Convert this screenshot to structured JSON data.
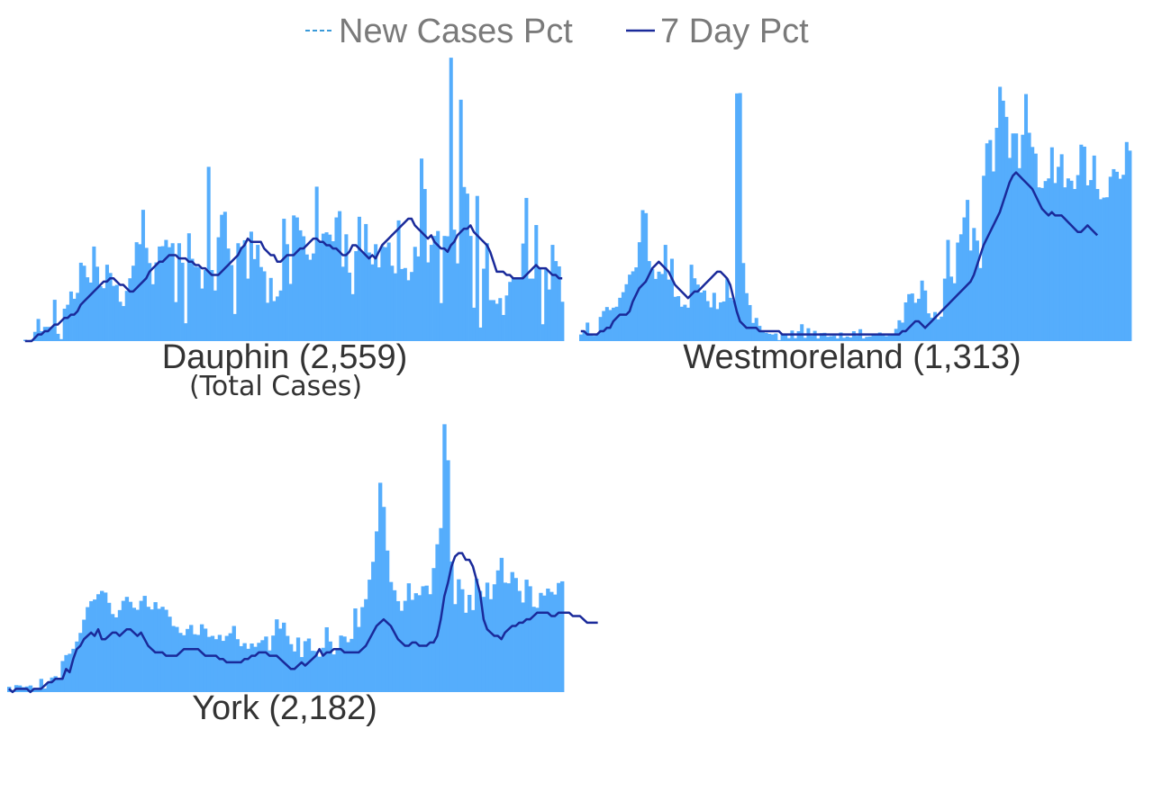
{
  "legend": {
    "new_cases_label": "New Cases Pct",
    "seven_day_label": "7 Day Pct"
  },
  "colors": {
    "bars": "#55adfc",
    "line": "#1a2a9a",
    "legend_dash": "#3a9ad9"
  },
  "chart_data": [
    {
      "type": "bar",
      "title": "Dauphin (2,559)",
      "subtitle": "(Total Cases)",
      "values": [
        0.4,
        0.2,
        0.4,
        2.8,
        6.7,
        3.0,
        4.3,
        4.3,
        4.3,
        12.5,
        2.2,
        0.6,
        9.8,
        11.0,
        15.0,
        12.8,
        14.6,
        23.7,
        22.8,
        19.3,
        17.7,
        28.6,
        22.5,
        16.6,
        16.0,
        23.1,
        20.6,
        16.7,
        17.0,
        11.9,
        10.6,
        15.2,
        19.0,
        22.8,
        29.9,
        29.3,
        39.7,
        28.2,
        23.6,
        17.2,
        23.8,
        28.6,
        28.7,
        30.6,
        28.4,
        29.6,
        11.8,
        29.6,
        23.7,
        5.4,
        32.6,
        24.9,
        22.5,
        22.4,
        15.9,
        21.5,
        52.7,
        21.5,
        15.3,
        31.4,
        38.2,
        39.1,
        28.0,
        23.0,
        8.2,
        29.6,
        28.5,
        30.5,
        18.9,
        33.1,
        24.8,
        29.1,
        22.4,
        21.1,
        11.6,
        19.1,
        12.1,
        13.5,
        15.3,
        37.0,
        29.3,
        17.3,
        38.0,
        37.4,
        33.5,
        31.7,
        26.2,
        24.6,
        26.5,
        46.7,
        29.8,
        32.5,
        32.9,
        32.2,
        30.2,
        37.4,
        39.3,
        22.5,
        32.3,
        20.7,
        14.2,
        27.2,
        37.6,
        26.9,
        35.4,
        26.8,
        23.2,
        29.3,
        22.3,
        28.7,
        28.4,
        29.8,
        22.8,
        20.5,
        36.5,
        21.8,
        22.1,
        18.4,
        20.9,
        28.5,
        25.6,
        55.2,
        46.0,
        23.8,
        29.1,
        31.8,
        33.3,
        11.5,
        31.8,
        31.7,
        85.7,
        33.7,
        23.5,
        73.0,
        46.6,
        44.6,
        31.8,
        10.1,
        43.9,
        4.1,
        21.9,
        29.6,
        12.4,
        12.4,
        11.3,
        13.0,
        7.9,
        13.8,
        17.9,
        19.0,
        19.1,
        19.2,
        29.5,
        43.3,
        18.9,
        18.9,
        35.1,
        22.2,
        5.1,
        21.7,
        15.6,
        29.1,
        24.2,
        22.6,
        11.9
      ],
      "line": [
        0,
        0,
        0,
        1,
        2,
        2,
        3,
        3,
        4,
        5,
        5,
        6,
        7,
        7,
        8,
        8,
        9,
        11,
        12,
        13,
        14,
        15,
        16,
        17,
        18,
        18,
        19,
        19,
        18,
        17,
        17,
        16,
        15,
        15,
        16,
        17,
        18,
        19,
        21,
        22,
        23,
        24,
        24,
        25,
        26,
        26,
        26,
        25,
        25,
        25,
        24,
        24,
        23,
        23,
        22,
        22,
        21,
        20,
        20,
        20,
        21,
        22,
        23,
        24,
        25,
        26,
        28,
        29,
        31,
        30,
        30,
        30,
        30,
        28,
        27,
        26,
        26,
        24,
        24,
        25,
        26,
        26,
        26,
        27,
        28,
        28,
        29,
        30,
        31,
        31,
        30,
        30,
        29,
        29,
        28,
        28,
        27,
        26,
        26,
        27,
        29,
        29,
        28,
        27,
        26,
        25,
        26,
        25,
        27,
        29,
        30,
        31,
        32,
        33,
        34,
        35,
        36,
        37,
        37,
        35,
        34,
        33,
        32,
        31,
        32,
        30,
        29,
        28,
        28,
        27,
        29,
        30,
        32,
        33,
        34,
        34,
        35,
        33,
        32,
        31,
        30,
        29,
        27,
        24,
        21,
        21,
        21,
        20,
        20,
        19,
        19,
        19,
        19,
        20,
        21,
        22,
        23,
        22,
        22,
        22,
        21,
        20,
        20,
        19,
        19
      ],
      "ylim": [
        0,
        86
      ]
    },
    {
      "type": "bar",
      "title": "Westmoreland (1,313)",
      "values": [
        2.0,
        2.8,
        5.6,
        2.3,
        1.6,
        2.0,
        7.3,
        9.1,
        10.3,
        9.4,
        10.1,
        10.4,
        13.1,
        14.8,
        17.2,
        20.1,
        21.1,
        22.3,
        29.9,
        39.6,
        38.7,
        24.2,
        21.8,
        18.8,
        21.0,
        20.3,
        29.1,
        18.6,
        24.9,
        13.4,
        13.6,
        10.4,
        11.0,
        10.1,
        23.1,
        19.0,
        17.1,
        14.7,
        15.3,
        12.1,
        10.2,
        14.6,
        9.7,
        11.7,
        12.0,
        18.9,
        13.1,
        12.3,
        74.9,
        75.0,
        23.6,
        14.5,
        10.9,
        5.5,
        7.0,
        4.6,
        3.2,
        2.5,
        2.2,
        2.0,
        2.3,
        0.3,
        2.3,
        2.3,
        0.9,
        3.2,
        0.9,
        3.0,
        5.1,
        1.0,
        3.9,
        1.6,
        3.1,
        0.8,
        2.4,
        2.5,
        1.3,
        1.5,
        1.6,
        0.8,
        2.6,
        1.0,
        1.4,
        1.1,
        3.0,
        1.6,
        3.6,
        0.8,
        1.3,
        1.4,
        2.0,
        1.9,
        2.6,
        2.3,
        1.5,
        1.7,
        1.9,
        3.7,
        6.3,
        5.6,
        11.7,
        14.2,
        14.4,
        11.6,
        12.8,
        18.3,
        15.3,
        8.4,
        7.1,
        8.8,
        6.6,
        7.4,
        18.9,
        30.6,
        19.5,
        17.5,
        29.8,
        32.3,
        37.4,
        42.7,
        27.4,
        34.2,
        30.4,
        22.1,
        50.0,
        59.8,
        60.8,
        51.3,
        64.5,
        76.9,
        72.7,
        67.8,
        55.4,
        62.8,
        62.8,
        52.3,
        62.4,
        74.7,
        63.0,
        58.7,
        56.7,
        46.5,
        46.3,
        48.4,
        49.2,
        58.6,
        47.8,
        52.7,
        56.5,
        46.5,
        49.2,
        48.5,
        46.0,
        50.2,
        59.4,
        58.8,
        47.1,
        48.7,
        56.1,
        46.0,
        42.9,
        43.4,
        43.5,
        49.7,
        52.0,
        51.2,
        49.1,
        50.3,
        60.2,
        57.6
      ],
      "line": [
        3,
        3,
        2,
        2,
        2,
        2,
        3,
        3,
        4,
        4,
        6,
        7,
        8,
        8,
        8,
        9,
        12,
        14,
        16,
        17,
        18,
        20,
        22,
        23,
        24,
        23,
        22,
        21,
        19,
        17,
        16,
        15,
        14,
        13,
        14,
        15,
        15,
        16,
        17,
        18,
        19,
        20,
        21,
        21,
        20,
        19,
        17,
        13,
        9,
        6,
        5,
        4,
        4,
        4,
        4,
        3,
        3,
        3,
        3,
        3,
        3,
        3,
        2,
        2,
        2,
        2,
        2,
        2,
        2,
        2,
        2,
        2,
        2,
        2,
        2,
        2,
        2,
        2,
        2,
        2,
        2,
        2,
        2,
        2,
        2,
        2,
        2,
        2,
        2,
        2,
        2,
        2,
        2,
        2,
        2,
        2,
        2,
        2,
        2,
        3,
        3,
        4,
        5,
        6,
        6,
        5,
        4,
        5,
        6,
        7,
        8,
        9,
        10,
        11,
        12,
        13,
        14,
        15,
        16,
        17,
        18,
        20,
        23,
        26,
        29,
        31,
        33,
        35,
        37,
        39,
        42,
        45,
        48,
        50,
        51,
        50,
        49,
        48,
        47,
        46,
        44,
        42,
        40,
        39,
        38,
        39,
        38,
        38,
        38,
        37,
        36,
        35,
        34,
        33,
        33,
        34,
        35,
        34,
        33,
        32
      ],
      "ylim": [
        0,
        86
      ]
    },
    {
      "type": "bar",
      "title": "York (2,182)",
      "values": [
        1.6,
        0.6,
        2.1,
        2.0,
        1.5,
        1.7,
        2.0,
        1.2,
        1.2,
        4.0,
        1.1,
        2.9,
        4.4,
        4.8,
        4.1,
        9.4,
        11.2,
        11.6,
        13.1,
        15.3,
        17.9,
        21.9,
        25.7,
        27.5,
        28.0,
        29.6,
        30.6,
        30.1,
        27.0,
        23.6,
        22.6,
        24.8,
        27.6,
        28.8,
        27.3,
        25.5,
        24.9,
        27.6,
        29.1,
        25.8,
        25.0,
        27.2,
        25.2,
        25.8,
        24.9,
        22.8,
        20.0,
        19.7,
        17.9,
        17.2,
        19.1,
        20.3,
        17.5,
        17.3,
        20.5,
        19.2,
        16.7,
        17.0,
        16.0,
        17.3,
        15.5,
        17.0,
        17.8,
        20.0,
        16.0,
        13.9,
        14.8,
        13.1,
        14.7,
        13.7,
        14.9,
        15.7,
        16.8,
        12.6,
        17.1,
        22.0,
        19.2,
        21.0,
        17.0,
        14.5,
        12.3,
        16.5,
        10.6,
        15.4,
        16.2,
        12.5,
        12.4,
        10.7,
        13.4,
        19.6,
        15.3,
        11.4,
        12.9,
        17.1,
        16.8,
        15.1,
        16.1,
        25.3,
        19.7,
        25.7,
        28.1,
        34.0,
        39.4,
        48.6,
        63.3,
        56.0,
        42.8,
        33.3,
        30.8,
        27.5,
        24.6,
        27.6,
        32.9,
        27.9,
        29.9,
        29.3,
        32.0,
        32.2,
        29.6,
        37.5,
        44.7,
        49.6,
        81.0,
        70.1,
        39.5,
        26.6,
        34.1,
        31.1,
        24.0,
        29.4,
        24.8,
        34.3,
        30.6,
        28.8,
        33.1,
        28.1,
        32.6,
        36.8,
        40.6,
        33.1,
        32.9,
        36.3,
        34.5,
        30.6,
        27.1,
        34.0,
        32.0,
        25.8,
        25.5,
        30.0,
        29.2,
        31.3,
        30.3,
        29.5,
        33.0,
        33.5
      ],
      "line": [
        1,
        0,
        1,
        1,
        1,
        1,
        0,
        1,
        1,
        1,
        2,
        3,
        3,
        4,
        4,
        4,
        7,
        6,
        10,
        13,
        14,
        16,
        17,
        18,
        17,
        19,
        16,
        16,
        17,
        18,
        18,
        17,
        18,
        19,
        19,
        18,
        17,
        18,
        16,
        14,
        13,
        12,
        12,
        12,
        11,
        11,
        11,
        11,
        12,
        13,
        13,
        13,
        13,
        13,
        12,
        11,
        11,
        11,
        11,
        10,
        10,
        9,
        9,
        9,
        9,
        9,
        10,
        10,
        11,
        11,
        12,
        12,
        12,
        11,
        11,
        11,
        10,
        9,
        8,
        7,
        7,
        8,
        9,
        8,
        9,
        10,
        11,
        13,
        11,
        12,
        12,
        13,
        13,
        13,
        12,
        12,
        12,
        12,
        12,
        13,
        14,
        16,
        18,
        20,
        21,
        22,
        21,
        20,
        18,
        16,
        15,
        14,
        14,
        15,
        15,
        14,
        14,
        14,
        15,
        15,
        17,
        22,
        29,
        33,
        38,
        41,
        42,
        42,
        40,
        40,
        38,
        34,
        30,
        22,
        19,
        18,
        17,
        17,
        16,
        18,
        19,
        20,
        20,
        21,
        21,
        22,
        22,
        23,
        24,
        24,
        24,
        24,
        23,
        23,
        24,
        24,
        24,
        24,
        23,
        23,
        23,
        22,
        21,
        21,
        21,
        21
      ],
      "ylim": [
        0,
        86
      ]
    }
  ]
}
